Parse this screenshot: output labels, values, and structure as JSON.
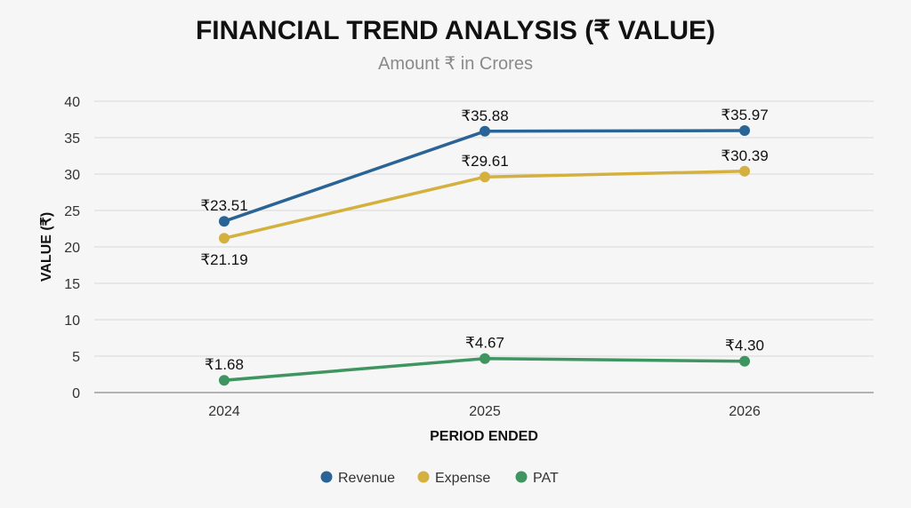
{
  "chart_data": {
    "type": "line",
    "title": "FINANCIAL TREND ANALYSIS (₹ VALUE)",
    "subtitle": "Amount ₹ in Crores",
    "xlabel": "PERIOD ENDED",
    "ylabel": "VALUE (₹)",
    "categories": [
      "2024",
      "2025",
      "2026"
    ],
    "ylim": [
      0,
      40
    ],
    "yticks": [
      0,
      5,
      10,
      15,
      20,
      25,
      30,
      35,
      40
    ],
    "grid": true,
    "legend_position": "bottom-center",
    "series": [
      {
        "name": "Revenue",
        "color": "#2a6496",
        "values": [
          23.51,
          35.88,
          35.97
        ],
        "labels": [
          "₹23.51",
          "₹35.88",
          "₹35.97"
        ],
        "label_side": [
          "above",
          "above",
          "above"
        ]
      },
      {
        "name": "Expense",
        "color": "#d4b13f",
        "values": [
          21.19,
          29.61,
          30.39
        ],
        "labels": [
          "₹21.19",
          "₹29.61",
          "₹30.39"
        ],
        "label_side": [
          "below",
          "above",
          "above"
        ]
      },
      {
        "name": "PAT",
        "color": "#3f9560",
        "values": [
          1.68,
          4.67,
          4.3
        ],
        "labels": [
          "₹1.68",
          "₹4.67",
          "₹4.30"
        ],
        "label_side": [
          "above",
          "above",
          "above"
        ]
      }
    ]
  }
}
